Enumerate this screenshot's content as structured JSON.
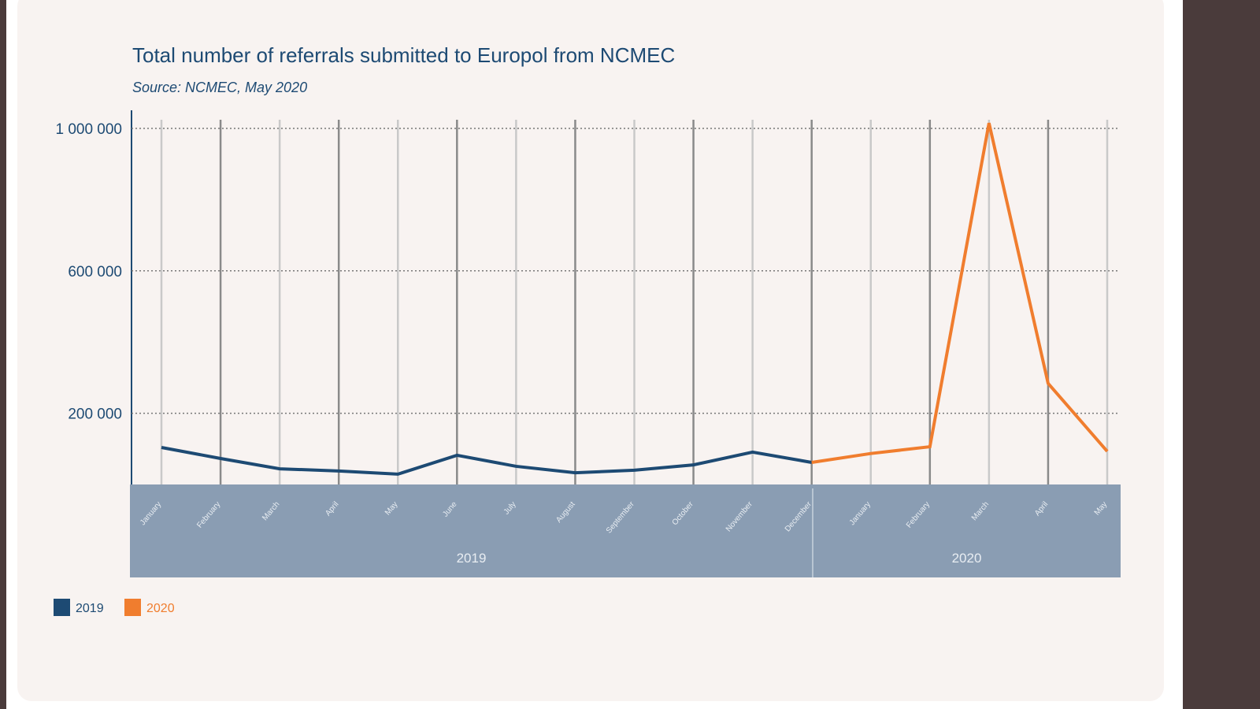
{
  "chart_data": {
    "type": "line",
    "title": "Total number of referrals submitted to Europol from NCMEC",
    "subtitle": "Source: NCMEC, May 2020",
    "xlabel": "",
    "ylabel": "",
    "ylim": [
      0,
      1000000
    ],
    "yticks": [
      200000,
      600000,
      1000000
    ],
    "ytick_labels": [
      "200 000",
      "600 000",
      "1 000 000"
    ],
    "grid": true,
    "legend_placement": "bottom-left",
    "groups": [
      {
        "label": "2019",
        "months": [
          "January",
          "February",
          "March",
          "April",
          "May",
          "June",
          "July",
          "August",
          "September",
          "October",
          "November",
          "December"
        ]
      },
      {
        "label": "2020",
        "months": [
          "January",
          "February",
          "March",
          "April",
          "May"
        ]
      }
    ],
    "series": [
      {
        "name": "2019",
        "color": "#1d4a73",
        "values": [
          104000,
          73000,
          44000,
          38000,
          29000,
          82000,
          51000,
          33000,
          40000,
          55000,
          91000,
          62000
        ]
      },
      {
        "name": "2020",
        "color": "#f07d2e",
        "values": [
          87000,
          106000,
          1015000,
          284000,
          93000
        ]
      }
    ]
  },
  "colors": {
    "axis_band": "#8a9db3",
    "card": "#f8f3f1",
    "title": "#1d4a73"
  }
}
